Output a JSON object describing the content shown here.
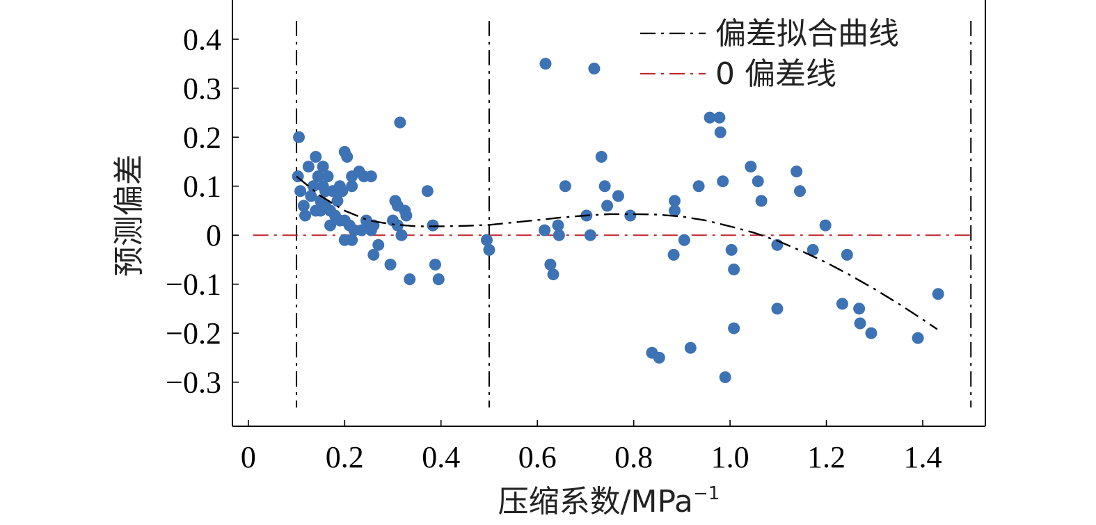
{
  "chart_data": {
    "type": "scatter",
    "xlabel": "压缩系数/MPa",
    "xlabel_superscript": "−1",
    "ylabel": "预测偏差",
    "xlim": [
      -0.033,
      1.53
    ],
    "ylim": [
      -0.39,
      0.48
    ],
    "x_ticks": [
      0,
      0.2,
      0.4,
      0.6,
      0.8,
      1.0,
      1.2,
      1.4
    ],
    "x_tick_labels": [
      "0",
      "0.2",
      "0.4",
      "0.6",
      "0.8",
      "1.0",
      "1.2",
      "1.4"
    ],
    "y_ticks": [
      0.4,
      0.3,
      0.2,
      0.1,
      0,
      -0.1,
      -0.2,
      -0.3
    ],
    "y_tick_labels": [
      "0.4",
      "0.3",
      "0.2",
      "0.1",
      "0",
      "−0.1",
      "−0.2",
      "−0.3"
    ],
    "grid": false,
    "legend_position": "top-right",
    "legend": [
      {
        "label": "偏差拟合曲线",
        "color": "#000000",
        "style": "dash-dot"
      },
      {
        "label": "0 偏差线",
        "color": "#c1272d",
        "style": "dash-dot"
      }
    ],
    "vertical_lines_x": [
      0.1,
      0.5,
      1.5
    ],
    "zero_line": {
      "y": 0,
      "x_range": [
        0.01,
        1.5
      ],
      "color": "#c1272d"
    },
    "fit_curve": {
      "color": "#000000",
      "x": [
        0.1,
        0.15,
        0.2,
        0.25,
        0.3,
        0.35,
        0.4,
        0.45,
        0.5,
        0.55,
        0.6,
        0.65,
        0.7,
        0.75,
        0.8,
        0.85,
        0.9,
        0.95,
        1.0,
        1.05,
        1.1,
        1.15,
        1.2,
        1.25,
        1.3,
        1.35,
        1.4,
        1.43
      ],
      "y": [
        0.12,
        0.08,
        0.05,
        0.03,
        0.022,
        0.018,
        0.018,
        0.019,
        0.021,
        0.026,
        0.031,
        0.036,
        0.04,
        0.043,
        0.043,
        0.042,
        0.038,
        0.03,
        0.018,
        0.005,
        -0.012,
        -0.033,
        -0.056,
        -0.082,
        -0.11,
        -0.14,
        -0.172,
        -0.192
      ]
    },
    "series": [
      {
        "color": "#3d72b4",
        "points": [
          [
            0.105,
            0.2
          ],
          [
            0.103,
            0.12
          ],
          [
            0.108,
            0.09
          ],
          [
            0.115,
            0.06
          ],
          [
            0.118,
            0.04
          ],
          [
            0.125,
            0.14
          ],
          [
            0.13,
            0.08
          ],
          [
            0.135,
            0.1
          ],
          [
            0.14,
            0.16
          ],
          [
            0.14,
            0.05
          ],
          [
            0.145,
            0.12
          ],
          [
            0.15,
            0.07
          ],
          [
            0.15,
            0.05
          ],
          [
            0.155,
            0.14
          ],
          [
            0.155,
            0.1
          ],
          [
            0.16,
            0.09
          ],
          [
            0.16,
            0.06
          ],
          [
            0.165,
            0.12
          ],
          [
            0.17,
            0.05
          ],
          [
            0.17,
            0.02
          ],
          [
            0.175,
            0.09
          ],
          [
            0.18,
            0.04
          ],
          [
            0.185,
            0.07
          ],
          [
            0.19,
            0.1
          ],
          [
            0.19,
            0.03
          ],
          [
            0.195,
            0.09
          ],
          [
            0.2,
            0.17
          ],
          [
            0.2,
            0.03
          ],
          [
            0.2,
            -0.01
          ],
          [
            0.205,
            0.16
          ],
          [
            0.21,
            0.02
          ],
          [
            0.215,
            0.1
          ],
          [
            0.215,
            0.12
          ],
          [
            0.215,
            -0.01
          ],
          [
            0.22,
            0.01
          ],
          [
            0.23,
            0.13
          ],
          [
            0.235,
            0.01
          ],
          [
            0.24,
            0.12
          ],
          [
            0.245,
            0.03
          ],
          [
            0.25,
            0.02
          ],
          [
            0.255,
            0.12
          ],
          [
            0.255,
            0.01
          ],
          [
            0.26,
            0.02
          ],
          [
            0.26,
            -0.04
          ],
          [
            0.27,
            -0.02
          ],
          [
            0.295,
            -0.06
          ],
          [
            0.3,
            0.03
          ],
          [
            0.305,
            0.07
          ],
          [
            0.31,
            0.06
          ],
          [
            0.31,
            0.02
          ],
          [
            0.315,
            0.23
          ],
          [
            0.318,
            0.0
          ],
          [
            0.325,
            0.05
          ],
          [
            0.328,
            0.04
          ],
          [
            0.335,
            -0.09
          ],
          [
            0.372,
            0.09
          ],
          [
            0.383,
            0.02
          ],
          [
            0.388,
            -0.06
          ],
          [
            0.395,
            -0.09
          ],
          [
            0.495,
            -0.01
          ],
          [
            0.5,
            -0.03
          ],
          [
            0.617,
            0.35
          ],
          [
            0.615,
            0.01
          ],
          [
            0.627,
            -0.06
          ],
          [
            0.633,
            -0.08
          ],
          [
            0.643,
            0.02
          ],
          [
            0.645,
            0.0
          ],
          [
            0.658,
            0.1
          ],
          [
            0.702,
            0.04
          ],
          [
            0.71,
            0.0
          ],
          [
            0.718,
            0.34
          ],
          [
            0.733,
            0.16
          ],
          [
            0.74,
            0.1
          ],
          [
            0.745,
            0.06
          ],
          [
            0.768,
            0.08
          ],
          [
            0.793,
            0.04
          ],
          [
            0.838,
            -0.24
          ],
          [
            0.853,
            -0.25
          ],
          [
            0.885,
            0.07
          ],
          [
            0.885,
            0.05
          ],
          [
            0.883,
            -0.04
          ],
          [
            0.905,
            -0.01
          ],
          [
            0.918,
            -0.23
          ],
          [
            0.935,
            0.1
          ],
          [
            0.958,
            0.24
          ],
          [
            0.978,
            0.24
          ],
          [
            0.98,
            0.21
          ],
          [
            0.985,
            0.11
          ],
          [
            0.99,
            -0.29
          ],
          [
            1.003,
            -0.03
          ],
          [
            1.008,
            -0.07
          ],
          [
            1.008,
            -0.19
          ],
          [
            1.043,
            0.14
          ],
          [
            1.058,
            0.11
          ],
          [
            1.065,
            0.07
          ],
          [
            1.098,
            -0.02
          ],
          [
            1.098,
            -0.15
          ],
          [
            1.138,
            0.13
          ],
          [
            1.145,
            0.09
          ],
          [
            1.172,
            -0.03
          ],
          [
            1.198,
            0.02
          ],
          [
            1.233,
            -0.14
          ],
          [
            1.243,
            -0.04
          ],
          [
            1.268,
            -0.15
          ],
          [
            1.27,
            -0.18
          ],
          [
            1.293,
            -0.2
          ],
          [
            1.39,
            -0.21
          ],
          [
            1.432,
            -0.12
          ]
        ]
      }
    ]
  }
}
